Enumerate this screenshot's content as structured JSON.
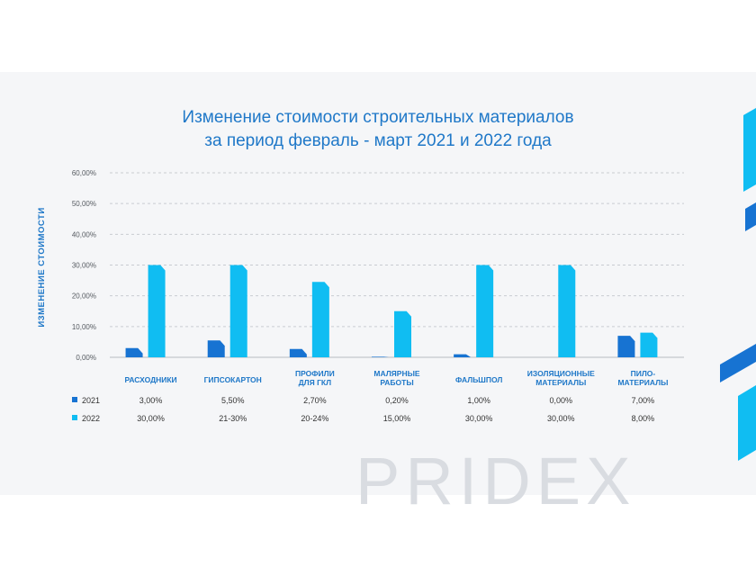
{
  "chart_data": {
    "type": "bar",
    "title_lines": [
      "Изменение стоимости строительных материалов",
      "за период февраль - март 2021 и 2022 года"
    ],
    "ylabel": "ИЗМЕНЕНИЕ СТОИМОСТИ",
    "ylim": [
      0,
      60
    ],
    "yticks": [
      "0,00%",
      "10,00%",
      "20,00%",
      "30,00%",
      "40,00%",
      "50,00%",
      "60,00%"
    ],
    "grid": true,
    "categories": [
      [
        "РАСХОДНИКИ"
      ],
      [
        "ГИПСОКАРТОН"
      ],
      [
        "ПРОФИЛИ",
        "ДЛЯ ГКЛ"
      ],
      [
        "МАЛЯРНЫЕ",
        "РАБОТЫ"
      ],
      [
        "ФАЛЬШПОЛ"
      ],
      [
        "ИЗОЛЯЦИОННЫЕ",
        "МАТЕРИАЛЫ"
      ],
      [
        "ПИЛО-",
        "МАТЕРИАЛЫ"
      ]
    ],
    "series": [
      {
        "name": "2021",
        "color": "#1773d2",
        "values": [
          3,
          5.5,
          2.7,
          0.2,
          1,
          0,
          7
        ],
        "labels": [
          "3,00%",
          "5,50%",
          "2,70%",
          "0,20%",
          "1,00%",
          "0,00%",
          "7,00%"
        ]
      },
      {
        "name": "2022",
        "color": "#10bdf2",
        "values": [
          30,
          30,
          24.5,
          15,
          30,
          30,
          8
        ],
        "labels": [
          "30,00%",
          "21-30%",
          "20-24%",
          "15,00%",
          "30,00%",
          "30,00%",
          "8,00%"
        ]
      }
    ],
    "legend": "bottom-left table"
  },
  "watermark": "PRIDEX"
}
